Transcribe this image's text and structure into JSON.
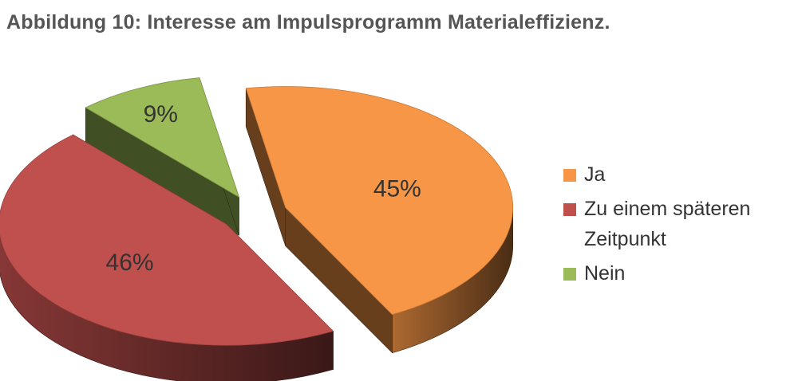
{
  "title": "Abbildung 10: Interesse am Impulsprogramm Materialeffizienz.",
  "chart_data": {
    "type": "pie",
    "title": "Abbildung 10: Interesse am Impulsprogramm Materialeffizienz.",
    "legend_position": "right",
    "three_d": true,
    "exploded": true,
    "slices": [
      {
        "label": "Ja",
        "value": 45,
        "display": "45%",
        "color": "#F79646"
      },
      {
        "label": "Zu einem späteren Zeitpunkt",
        "value": 46,
        "display": "46%",
        "color": "#C0504D"
      },
      {
        "label": "Nein",
        "value": 9,
        "display": "9%",
        "color": "#9BBB59"
      }
    ]
  }
}
